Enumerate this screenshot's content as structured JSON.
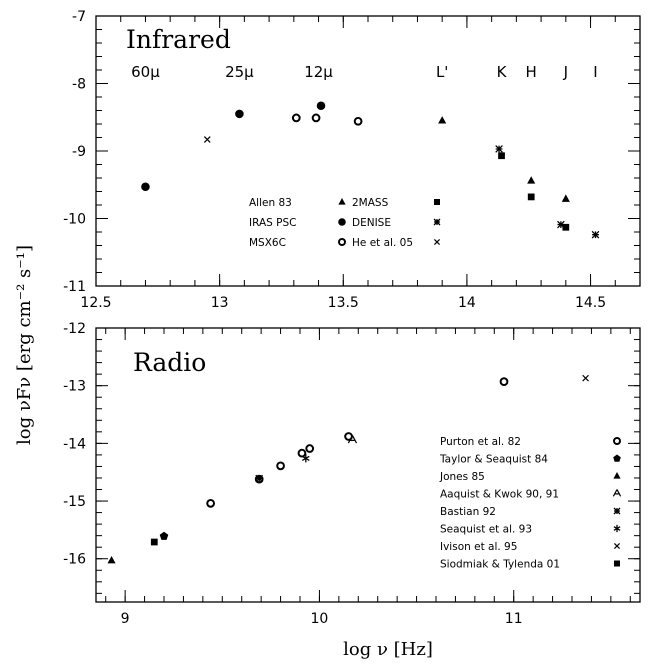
{
  "xlabel": "log ν [Hz]",
  "ylabel": "log νFν [erg cm⁻² s⁻¹]",
  "chart_data": [
    {
      "type": "scatter",
      "title": "Infrared",
      "xlim": [
        12.5,
        14.7
      ],
      "ylim": [
        -11,
        -7
      ],
      "xticks": [
        "12.5",
        "13",
        "13.5",
        "14",
        "14.5"
      ],
      "yticks": [
        "-7",
        "-8",
        "-9",
        "-10",
        "-11"
      ],
      "band_labels": [
        {
          "text": "60μ",
          "x": 12.7
        },
        {
          "text": "25μ",
          "x": 13.08
        },
        {
          "text": "12μ",
          "x": 13.4
        },
        {
          "text": "L'",
          "x": 13.9
        },
        {
          "text": "K",
          "x": 14.14
        },
        {
          "text": "H",
          "x": 14.26
        },
        {
          "text": "J",
          "x": 14.4
        },
        {
          "text": "I",
          "x": 14.52
        }
      ],
      "series": [
        {
          "name": "Allen 83",
          "marker": "triangle",
          "points": [
            [
              13.9,
              -8.55
            ],
            [
              14.26,
              -9.44
            ],
            [
              14.4,
              -9.71
            ]
          ]
        },
        {
          "name": "IRAS PSC",
          "marker": "dot",
          "points": [
            [
              12.7,
              -9.53
            ],
            [
              13.08,
              -8.45
            ],
            [
              13.41,
              -8.33
            ]
          ]
        },
        {
          "name": "MSX6C",
          "marker": "ring",
          "points": [
            [
              13.31,
              -8.51
            ],
            [
              13.39,
              -8.51
            ],
            [
              13.56,
              -8.56
            ]
          ]
        },
        {
          "name": "2MASS",
          "marker": "square",
          "points": [
            [
              14.14,
              -9.07
            ],
            [
              14.26,
              -9.68
            ],
            [
              14.4,
              -10.13
            ]
          ]
        },
        {
          "name": "DENISE",
          "marker": "star4",
          "points": [
            [
              14.13,
              -8.97
            ],
            [
              14.38,
              -10.09
            ],
            [
              14.52,
              -10.24
            ]
          ]
        },
        {
          "name": "He et al. 05",
          "marker": "cross",
          "points": [
            [
              12.95,
              -8.83
            ]
          ]
        }
      ],
      "legend": {
        "placement": "center",
        "entries": [
          {
            "name": "Allen 83",
            "marker": "triangle"
          },
          {
            "name": "2MASS",
            "marker": "square"
          },
          {
            "name": "IRAS PSC",
            "marker": "dot"
          },
          {
            "name": "DENISE",
            "marker": "star4"
          },
          {
            "name": "MSX6C",
            "marker": "ring"
          },
          {
            "name": "He et al. 05",
            "marker": "cross"
          }
        ]
      }
    },
    {
      "type": "scatter",
      "title": "Radio",
      "xlim": [
        8.85,
        11.65
      ],
      "ylim": [
        -16.75,
        -12
      ],
      "xticks": [
        "9",
        "10",
        "11"
      ],
      "yticks": [
        "-12",
        "-13",
        "-14",
        "-15",
        "-16"
      ],
      "series": [
        {
          "name": "Purton et al. 82",
          "marker": "ring",
          "points": [
            [
              9.44,
              -15.04
            ],
            [
              9.69,
              -14.62
            ],
            [
              9.8,
              -14.39
            ],
            [
              9.91,
              -14.17
            ],
            [
              9.95,
              -14.09
            ],
            [
              10.15,
              -13.88
            ],
            [
              10.95,
              -12.93
            ]
          ]
        },
        {
          "name": "Taylor & Seaquist 84",
          "marker": "pentagon",
          "points": [
            [
              9.2,
              -15.61
            ]
          ]
        },
        {
          "name": "Jones 85",
          "marker": "triangle",
          "points": [
            [
              8.93,
              -16.03
            ]
          ]
        },
        {
          "name": "Aaquist & Kwok 90, 91",
          "marker": "tri-outline",
          "points": [
            [
              10.17,
              -13.94
            ]
          ]
        },
        {
          "name": "Bastian 92",
          "marker": "star4",
          "points": [
            [
              9.69,
              -14.61
            ]
          ]
        },
        {
          "name": "Seaquist et al. 93",
          "marker": "star6",
          "points": [
            [
              9.93,
              -14.26
            ]
          ]
        },
        {
          "name": "Ivison et al. 95",
          "marker": "cross",
          "points": [
            [
              11.37,
              -12.87
            ]
          ]
        },
        {
          "name": "Siodmiak & Tylenda 01",
          "marker": "square",
          "points": [
            [
              9.15,
              -15.71
            ]
          ]
        }
      ],
      "legend": {
        "placement": "bottom-right",
        "entries": [
          {
            "name": "Purton et al. 82",
            "marker": "ring"
          },
          {
            "name": "Taylor & Seaquist 84",
            "marker": "pentagon"
          },
          {
            "name": "Jones 85",
            "marker": "triangle"
          },
          {
            "name": "Aaquist & Kwok 90, 91",
            "marker": "tri-outline"
          },
          {
            "name": "Bastian 92",
            "marker": "star4"
          },
          {
            "name": "Seaquist et al. 93",
            "marker": "star6"
          },
          {
            "name": "Ivison et al. 95",
            "marker": "cross"
          },
          {
            "name": "Siodmiak & Tylenda 01",
            "marker": "square"
          }
        ]
      }
    }
  ]
}
